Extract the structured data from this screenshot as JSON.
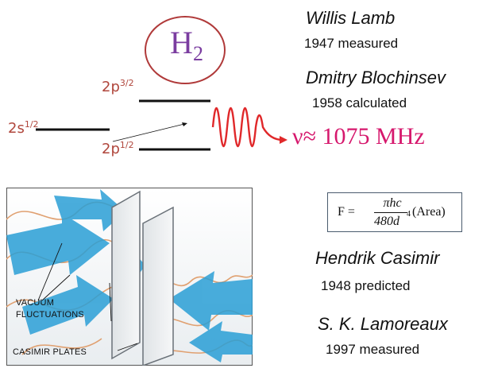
{
  "molecule": {
    "symbol": "H",
    "subscript": "2"
  },
  "lamb_shift": {
    "levels": [
      {
        "label": "2p",
        "sup": "3/2"
      },
      {
        "label": "2s",
        "sup": "1/2"
      },
      {
        "label": "2p",
        "sup": "1/2"
      }
    ],
    "frequency": "ν≈ 1075 MHz"
  },
  "people": [
    {
      "name": "Willis Lamb",
      "note": "1947 measured"
    },
    {
      "name": "Dmitry  Blochinsev",
      "note": "1958 calculated"
    },
    {
      "name": "Hendrik Casimir",
      "note": "1948 predicted"
    },
    {
      "name": "S. K. Lamoreaux",
      "note": "1997 measured"
    }
  ],
  "formula": {
    "lhs": "F =",
    "numerator": "πhc",
    "denominator": "480d",
    "exponent": "4",
    "tail": "(Area)"
  },
  "casimir_figure": {
    "label_vacuum_1": "VACUUM",
    "label_vacuum_2": "FLUCTUATIONS",
    "label_plates": "CASIMIR PLATES"
  },
  "colors": {
    "level_text": "#b0463c",
    "frequency": "#d6186d",
    "circle": "#b03a3a",
    "molecule": "#7b3da0"
  }
}
